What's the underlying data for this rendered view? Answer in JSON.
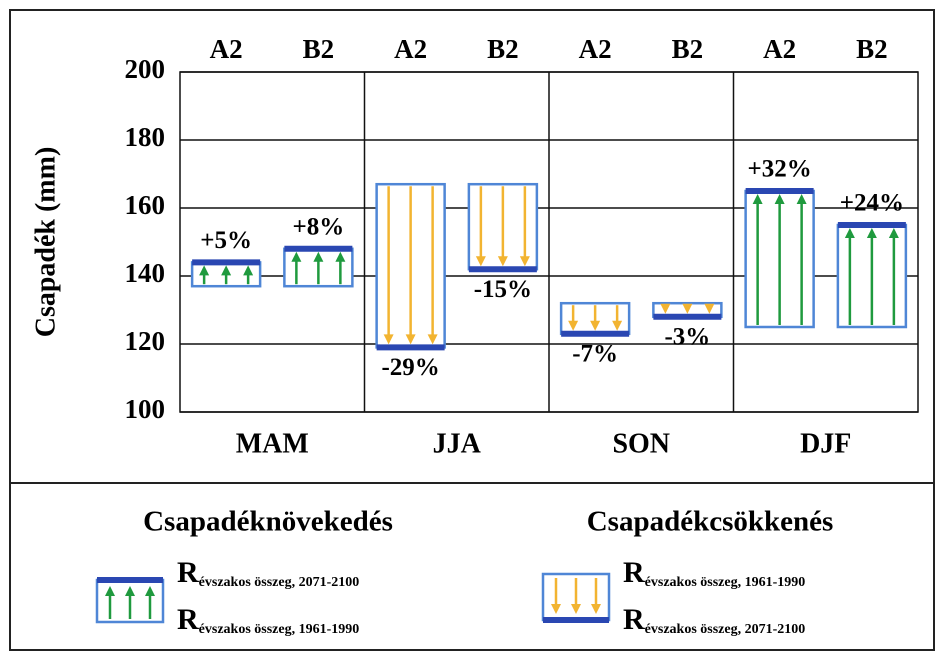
{
  "chart_data": {
    "type": "change-box",
    "y_label": "Csapadék (mm)",
    "ylim": [
      100,
      200
    ],
    "yticks": [
      100,
      120,
      140,
      160,
      180,
      200
    ],
    "grid": true,
    "categories": [
      "MAM",
      "JJA",
      "SON",
      "DJF"
    ],
    "colors": {
      "increase": "#1f9a3e",
      "decrease": "#f2b431",
      "box": "#4f86d6",
      "future_line": "#2a47b2"
    },
    "series": [
      {
        "name": "A2",
        "baseline": [
          137,
          167,
          132,
          125
        ],
        "future": [
          144,
          119,
          123,
          165
        ],
        "changes": [
          5,
          -29,
          -7,
          32
        ],
        "value_labels": [
          "+5%",
          "-29%",
          "-7%",
          "+32%"
        ]
      },
      {
        "name": "B2",
        "baseline": [
          137,
          167,
          132,
          125
        ],
        "future": [
          148,
          142,
          128,
          155
        ],
        "changes": [
          8,
          -15,
          -3,
          24
        ],
        "value_labels": [
          "+8%",
          "-15%",
          "-3%",
          "+24%"
        ]
      }
    ],
    "legend": {
      "increase": {
        "title": "Csapadéknövekedés",
        "top": {
          "symbol": "R",
          "subscript": "évszakos összeg, 2071-2100"
        },
        "bottom": {
          "symbol": "R",
          "subscript": "évszakos összeg, 1961-1990"
        }
      },
      "decrease": {
        "title": "Csapadékcsökkenés",
        "top": {
          "symbol": "R",
          "subscript": "évszakos összeg, 1961-1990"
        },
        "bottom": {
          "symbol": "R",
          "subscript": "évszakos összeg, 2071-2100"
        }
      }
    }
  }
}
